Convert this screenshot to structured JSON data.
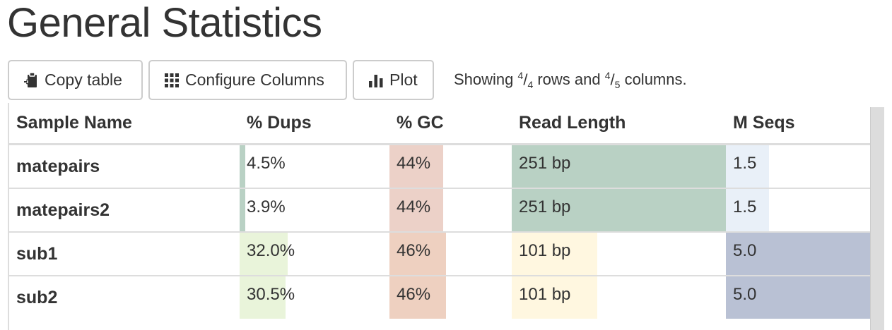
{
  "page": {
    "title": "General Statistics"
  },
  "toolbar": {
    "copy_label": "Copy table",
    "configure_label": "Configure Columns",
    "plot_label": "Plot",
    "showing": {
      "prefix": "Showing ",
      "rows_shown": "4",
      "rows_total": "4",
      "middle": " rows and ",
      "cols_shown": "4",
      "cols_total": "5",
      "suffix": " columns."
    }
  },
  "table": {
    "headers": [
      "Sample Name",
      "% Dups",
      "% GC",
      "Read Length",
      "M Seqs"
    ],
    "rows": [
      {
        "name": "matepairs",
        "dups": {
          "text": "4.5%",
          "fraction": 0.04,
          "color": "#b9d1c4"
        },
        "gc": {
          "text": "44%",
          "fraction": 0.44,
          "color": "#ecd1c8"
        },
        "readlen": {
          "text": "251 bp",
          "fraction": 1.0,
          "color": "#b9d1c4"
        },
        "mseqs": {
          "text": "1.5",
          "fraction": 0.3,
          "color": "#e9f0f8"
        }
      },
      {
        "name": "matepairs2",
        "dups": {
          "text": "3.9%",
          "fraction": 0.04,
          "color": "#b9d1c4"
        },
        "gc": {
          "text": "44%",
          "fraction": 0.44,
          "color": "#ecd1c8"
        },
        "readlen": {
          "text": "251 bp",
          "fraction": 1.0,
          "color": "#b9d1c4"
        },
        "mseqs": {
          "text": "1.5",
          "fraction": 0.3,
          "color": "#e9f0f8"
        }
      },
      {
        "name": "sub1",
        "dups": {
          "text": "32.0%",
          "fraction": 0.32,
          "color": "#e9f4da"
        },
        "gc": {
          "text": "46%",
          "fraction": 0.46,
          "color": "#eed0c0"
        },
        "readlen": {
          "text": "101 bp",
          "fraction": 0.4,
          "color": "#fff7e0"
        },
        "mseqs": {
          "text": "5.0",
          "fraction": 1.0,
          "color": "#b9c1d4"
        }
      },
      {
        "name": "sub2",
        "dups": {
          "text": "30.5%",
          "fraction": 0.305,
          "color": "#e9f4da"
        },
        "gc": {
          "text": "46%",
          "fraction": 0.46,
          "color": "#eed0c0"
        },
        "readlen": {
          "text": "101 bp",
          "fraction": 0.4,
          "color": "#fff7e0"
        },
        "mseqs": {
          "text": "5.0",
          "fraction": 1.0,
          "color": "#b9c1d4"
        }
      }
    ]
  }
}
